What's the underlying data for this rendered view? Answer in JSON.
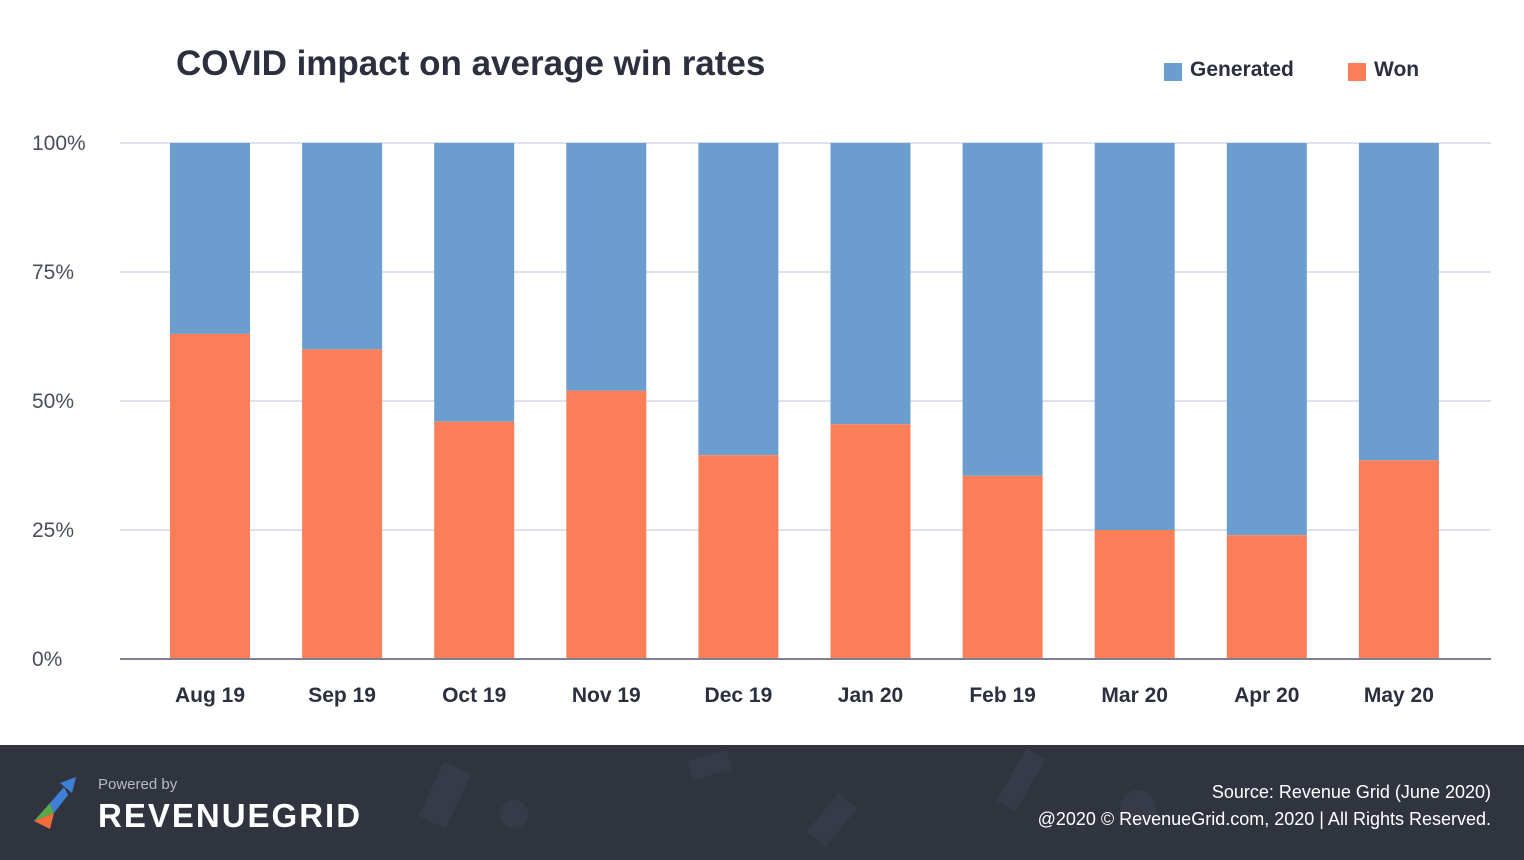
{
  "colors": {
    "generated": "#6b9ecf",
    "won": "#fa7f58",
    "grid": "#dfe1ec",
    "axis": "#7d8093",
    "text": "#2b2f3e",
    "tick_text": "#4a4e5c"
  },
  "legend": {
    "generated_label": "Generated",
    "won_label": "Won"
  },
  "chart_data": {
    "type": "bar",
    "stacked": true,
    "title": "COVID impact on average win rates",
    "categories": [
      "Aug 19",
      "Sep 19",
      "Oct 19",
      "Nov 19",
      "Dec 19",
      "Jan 20",
      "Feb 19",
      "Mar 20",
      "Apr 20",
      "May 20"
    ],
    "series": [
      {
        "name": "Won",
        "values": [
          63,
          60,
          46,
          52,
          39.5,
          45.5,
          35.5,
          25,
          24,
          38.5
        ]
      },
      {
        "name": "Generated",
        "values": [
          37,
          40,
          54,
          48,
          60.5,
          54.5,
          64.5,
          75,
          76,
          61.5
        ]
      }
    ],
    "ylim": [
      0,
      100
    ],
    "yticks": [
      0,
      25,
      50,
      75,
      100
    ],
    "ytick_labels": [
      "0%",
      "25%",
      "50%",
      "75%",
      "100%"
    ],
    "xlabel": "",
    "ylabel": "",
    "grid": true,
    "legend_position": "top-right"
  },
  "footer": {
    "powered_by": "Powered by",
    "brand": "REVENUEGRID",
    "source": "Source: Revenue Grid (June 2020)",
    "copyright": "@2020 © RevenueGrid.com, 2020 | All Rights Reserved."
  }
}
